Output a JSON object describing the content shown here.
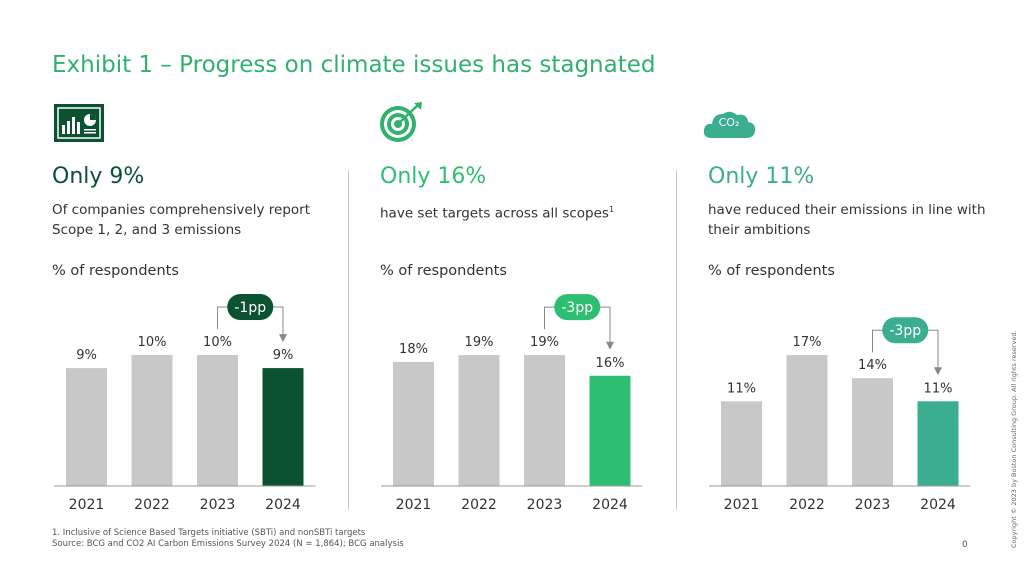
{
  "title": "Exhibit 1 – Progress on climate issues has stagnated",
  "panels": [
    {
      "headline": "Only 9%",
      "description": "Of companies comprehensively report Scope 1, 2, and 3 emissions",
      "footnote_mark": "",
      "subtitle": "% of respondents",
      "icon": "chart-report-icon",
      "change_label": "-1pp"
    },
    {
      "headline": "Only 16%",
      "description": "have set targets across all scopes",
      "footnote_mark": "1",
      "subtitle": "% of respondents",
      "icon": "target-icon",
      "change_label": "-3pp"
    },
    {
      "headline": "Only 11%",
      "description": "have reduced their emissions in line with their ambitions",
      "footnote_mark": "",
      "subtitle": "% of respondents",
      "icon": "co2-cloud-icon",
      "icon_text": "CO₂",
      "change_label": "-3pp"
    }
  ],
  "colors": {
    "title": "#32B06E",
    "bar_gray": "#C8C8C8",
    "bar_highlight": [
      "#0B5231",
      "#2DBE72",
      "#3AAE8E"
    ],
    "headline": [
      "#0B5231",
      "#2DBE72",
      "#3AAE8E"
    ],
    "badge": [
      "#0B5231",
      "#2DBE72",
      "#3AAE8E"
    ]
  },
  "chart_data": [
    {
      "type": "bar",
      "categories": [
        "2021",
        "2022",
        "2023",
        "2024"
      ],
      "values": [
        9,
        10,
        10,
        9
      ],
      "labels": [
        "9%",
        "10%",
        "10%",
        "9%"
      ],
      "title": "",
      "xlabel": "",
      "ylabel": "% of respondents",
      "ylim": [
        0,
        10
      ],
      "annotation": "-1pp"
    },
    {
      "type": "bar",
      "categories": [
        "2021",
        "2022",
        "2023",
        "2024"
      ],
      "values": [
        18,
        19,
        19,
        16
      ],
      "labels": [
        "18%",
        "19%",
        "19%",
        "16%"
      ],
      "title": "",
      "xlabel": "",
      "ylabel": "% of respondents",
      "ylim": [
        0,
        19
      ],
      "annotation": "-3pp"
    },
    {
      "type": "bar",
      "categories": [
        "2021",
        "2022",
        "2023",
        "2024"
      ],
      "values": [
        11,
        17,
        14,
        11
      ],
      "labels": [
        "11%",
        "17%",
        "14%",
        "11%"
      ],
      "title": "",
      "xlabel": "",
      "ylabel": "% of respondents",
      "ylim": [
        0,
        17
      ],
      "annotation": "-3pp"
    }
  ],
  "footnote": "1. Inclusive of Science Based Targets initiative (SBTi) and nonSBTi targets",
  "source": "Source: BCG and CO2 AI Carbon Emissions Survey 2024 (N = 1,864); BCG analysis",
  "page_number": "0",
  "copyright": "Copyright © 2023 by Boston Consulting Group. All rights reserved."
}
